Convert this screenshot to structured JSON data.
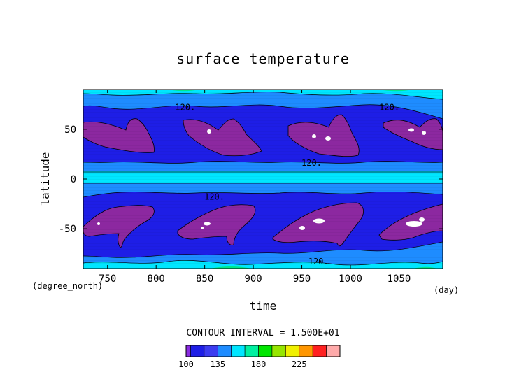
{
  "chart_data": {
    "type": "heatmap",
    "title": "surface temperature",
    "xlabel": "time",
    "ylabel": "latitude",
    "x_unit": "(day)",
    "y_unit": "(degree_north)",
    "xlim": [
      725,
      1095
    ],
    "ylim": [
      -90,
      90
    ],
    "xticks": [
      750,
      800,
      850,
      900,
      950,
      1000,
      1050
    ],
    "yticks": [
      -50,
      0,
      50
    ],
    "contour_interval_text": "CONTOUR INTERVAL = 1.500E+01",
    "contour_labels": [
      {
        "text": "120.",
        "x": 830,
        "y": 72
      },
      {
        "text": "120.",
        "x": 1040,
        "y": 72
      },
      {
        "text": "120.",
        "x": 960,
        "y": 16
      },
      {
        "text": "120.",
        "x": 860,
        "y": -18
      },
      {
        "text": "120.",
        "x": 967,
        "y": -83
      }
    ],
    "colorbar": {
      "levels": [
        100,
        105,
        120,
        135,
        150,
        165,
        180,
        195,
        210,
        225,
        240,
        255
      ],
      "tick_labels": [
        100,
        135,
        180,
        225
      ],
      "colors": [
        "#8a2be2",
        "#1e1ee6",
        "#3c3cf0",
        "#1e8cff",
        "#00e6ff",
        "#00f0a0",
        "#00e600",
        "#96e600",
        "#f0f000",
        "#ff9600",
        "#ff2020",
        "#ffaaaa"
      ]
    },
    "field_colors": {
      "purple": "#8c28a0",
      "dark_blue": "#1e1ee6",
      "mid_blue": "#1e8cff",
      "cyan": "#00e6ff",
      "green": "#00e68c",
      "white": "#ffffff"
    }
  }
}
